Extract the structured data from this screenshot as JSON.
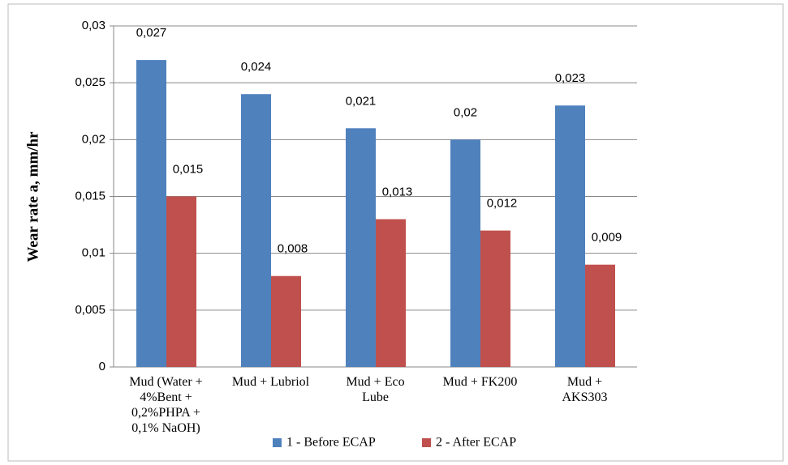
{
  "chart_data": {
    "type": "bar",
    "y_axis_label": "Wear rate a, mm/hr",
    "categories": [
      "Mud (Water +\n4%Bent +\n0,2%PHPA +\n0,1% NaOH)",
      "Mud + Lubriol",
      "Mud + Eco\nLube",
      "Mud + FK200",
      "Mud +\nAKS303"
    ],
    "series": [
      {
        "name": "1 - Before ECAP",
        "color": "#4f81bd",
        "values": [
          0.027,
          0.024,
          0.021,
          0.02,
          0.023
        ],
        "value_labels": [
          "0,027",
          "0,024",
          "0,021",
          "0,02",
          "0,023"
        ]
      },
      {
        "name": "2 - After ECAP",
        "color": "#c0504d",
        "values": [
          0.015,
          0.008,
          0.013,
          0.012,
          0.009
        ],
        "value_labels": [
          "0,015",
          "0,008",
          "0,013",
          "0,012",
          "0,009"
        ]
      }
    ],
    "ylim": [
      0,
      0.03
    ],
    "yticks": [
      0,
      {
        "value": 0.005,
        "label": "0,005"
      },
      {
        "value": 0.01,
        "label": "0,01"
      },
      {
        "value": 0.015,
        "label": "0,015"
      },
      {
        "value": 0.02,
        "label": "0,02"
      },
      {
        "value": 0.025,
        "label": "0,025"
      },
      {
        "value": 0.03,
        "label": "0,03"
      }
    ],
    "grid": true,
    "legend": "bottom"
  }
}
